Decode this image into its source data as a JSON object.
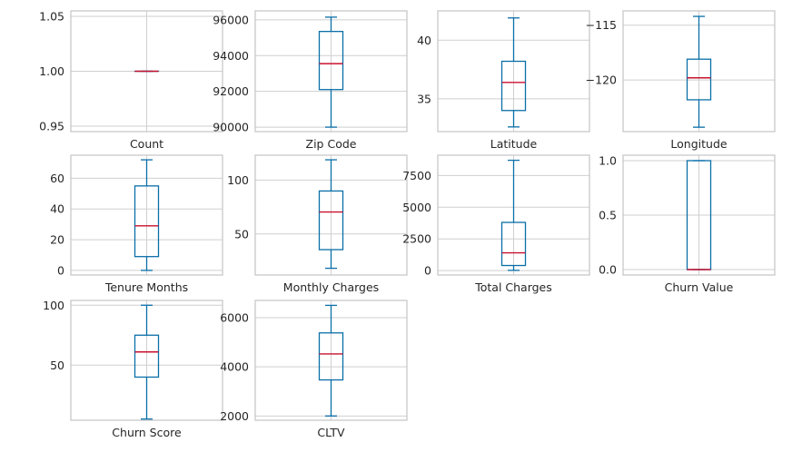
{
  "colors": {
    "box": "#0a6fa8",
    "median": "#c8102e",
    "grid": "#cfcfcf",
    "frame": "#c8c8c8",
    "background": "#ffffff",
    "text": "#262626"
  },
  "chart_data": [
    {
      "type": "box",
      "xlabel": "Count",
      "ylim": [
        0.945,
        1.055
      ],
      "yticks": [
        0.95,
        1.0,
        1.05
      ],
      "ytick_labels": [
        "0.95",
        "1.00",
        "1.05"
      ],
      "stats": {
        "min": 1.0,
        "q1": 1.0,
        "median": 1.0,
        "q3": 1.0,
        "max": 1.0
      },
      "grid": true
    },
    {
      "type": "box",
      "xlabel": "Zip Code",
      "ylim": [
        89750,
        96500
      ],
      "yticks": [
        90000,
        92000,
        94000,
        96000
      ],
      "ytick_labels": [
        "90000",
        "92000",
        "94000",
        "96000"
      ],
      "stats": {
        "min": 90000,
        "q1": 92100,
        "median": 93550,
        "q3": 95350,
        "max": 96150
      },
      "grid": true
    },
    {
      "type": "box",
      "xlabel": "Latitude",
      "ylim": [
        32.2,
        42.5
      ],
      "yticks": [
        35,
        40
      ],
      "ytick_labels": [
        "35",
        "40"
      ],
      "stats": {
        "min": 32.6,
        "q1": 34.0,
        "median": 36.4,
        "q3": 38.2,
        "max": 41.9
      },
      "grid": true
    },
    {
      "type": "box",
      "xlabel": "Longitude",
      "ylim": [
        -124.7,
        -113.7
      ],
      "yticks": [
        -120,
        -115
      ],
      "ytick_labels": [
        "−120",
        "−115"
      ],
      "stats": {
        "min": -124.3,
        "q1": -121.8,
        "median": -119.8,
        "q3": -118.1,
        "max": -114.2
      },
      "grid": true
    },
    {
      "type": "box",
      "xlabel": "Tenure Months",
      "ylim": [
        -3,
        75
      ],
      "yticks": [
        0,
        20,
        40,
        60
      ],
      "ytick_labels": [
        "0",
        "20",
        "40",
        "60"
      ],
      "stats": {
        "min": 0,
        "q1": 9,
        "median": 29,
        "q3": 55,
        "max": 72
      },
      "grid": true
    },
    {
      "type": "box",
      "xlabel": "Monthly Charges",
      "ylim": [
        12,
        123
      ],
      "yticks": [
        50,
        100
      ],
      "ytick_labels": [
        "50",
        "100"
      ],
      "stats": {
        "min": 18.25,
        "q1": 35.5,
        "median": 70.35,
        "q3": 89.85,
        "max": 118.75
      },
      "grid": true
    },
    {
      "type": "box",
      "xlabel": "Total Charges",
      "ylim": [
        -350,
        9100
      ],
      "yticks": [
        0,
        2500,
        5000,
        7500
      ],
      "ytick_labels": [
        "0",
        "2500",
        "5000",
        "7500"
      ],
      "stats": {
        "min": 19,
        "q1": 400,
        "median": 1400,
        "q3": 3800,
        "max": 8700
      },
      "grid": true
    },
    {
      "type": "box",
      "xlabel": "Churn Value",
      "ylim": [
        -0.05,
        1.05
      ],
      "yticks": [
        0.0,
        0.5,
        1.0
      ],
      "ytick_labels": [
        "0.0",
        "0.5",
        "1.0"
      ],
      "stats": {
        "min": 0,
        "q1": 0,
        "median": 0,
        "q3": 1,
        "max": 1
      },
      "grid": true
    },
    {
      "type": "box",
      "xlabel": "Churn Score",
      "ylim": [
        4,
        104
      ],
      "yticks": [
        50,
        100
      ],
      "ytick_labels": [
        "50",
        "100"
      ],
      "stats": {
        "min": 5,
        "q1": 40,
        "median": 61,
        "q3": 75,
        "max": 100
      },
      "grid": true
    },
    {
      "type": "box",
      "xlabel": "CLTV",
      "ylim": [
        1830,
        6700
      ],
      "yticks": [
        2000,
        4000,
        6000
      ],
      "ytick_labels": [
        "2000",
        "4000",
        "6000"
      ],
      "stats": {
        "min": 2003,
        "q1": 3469,
        "median": 4527,
        "q3": 5380,
        "max": 6500
      },
      "grid": true
    }
  ]
}
